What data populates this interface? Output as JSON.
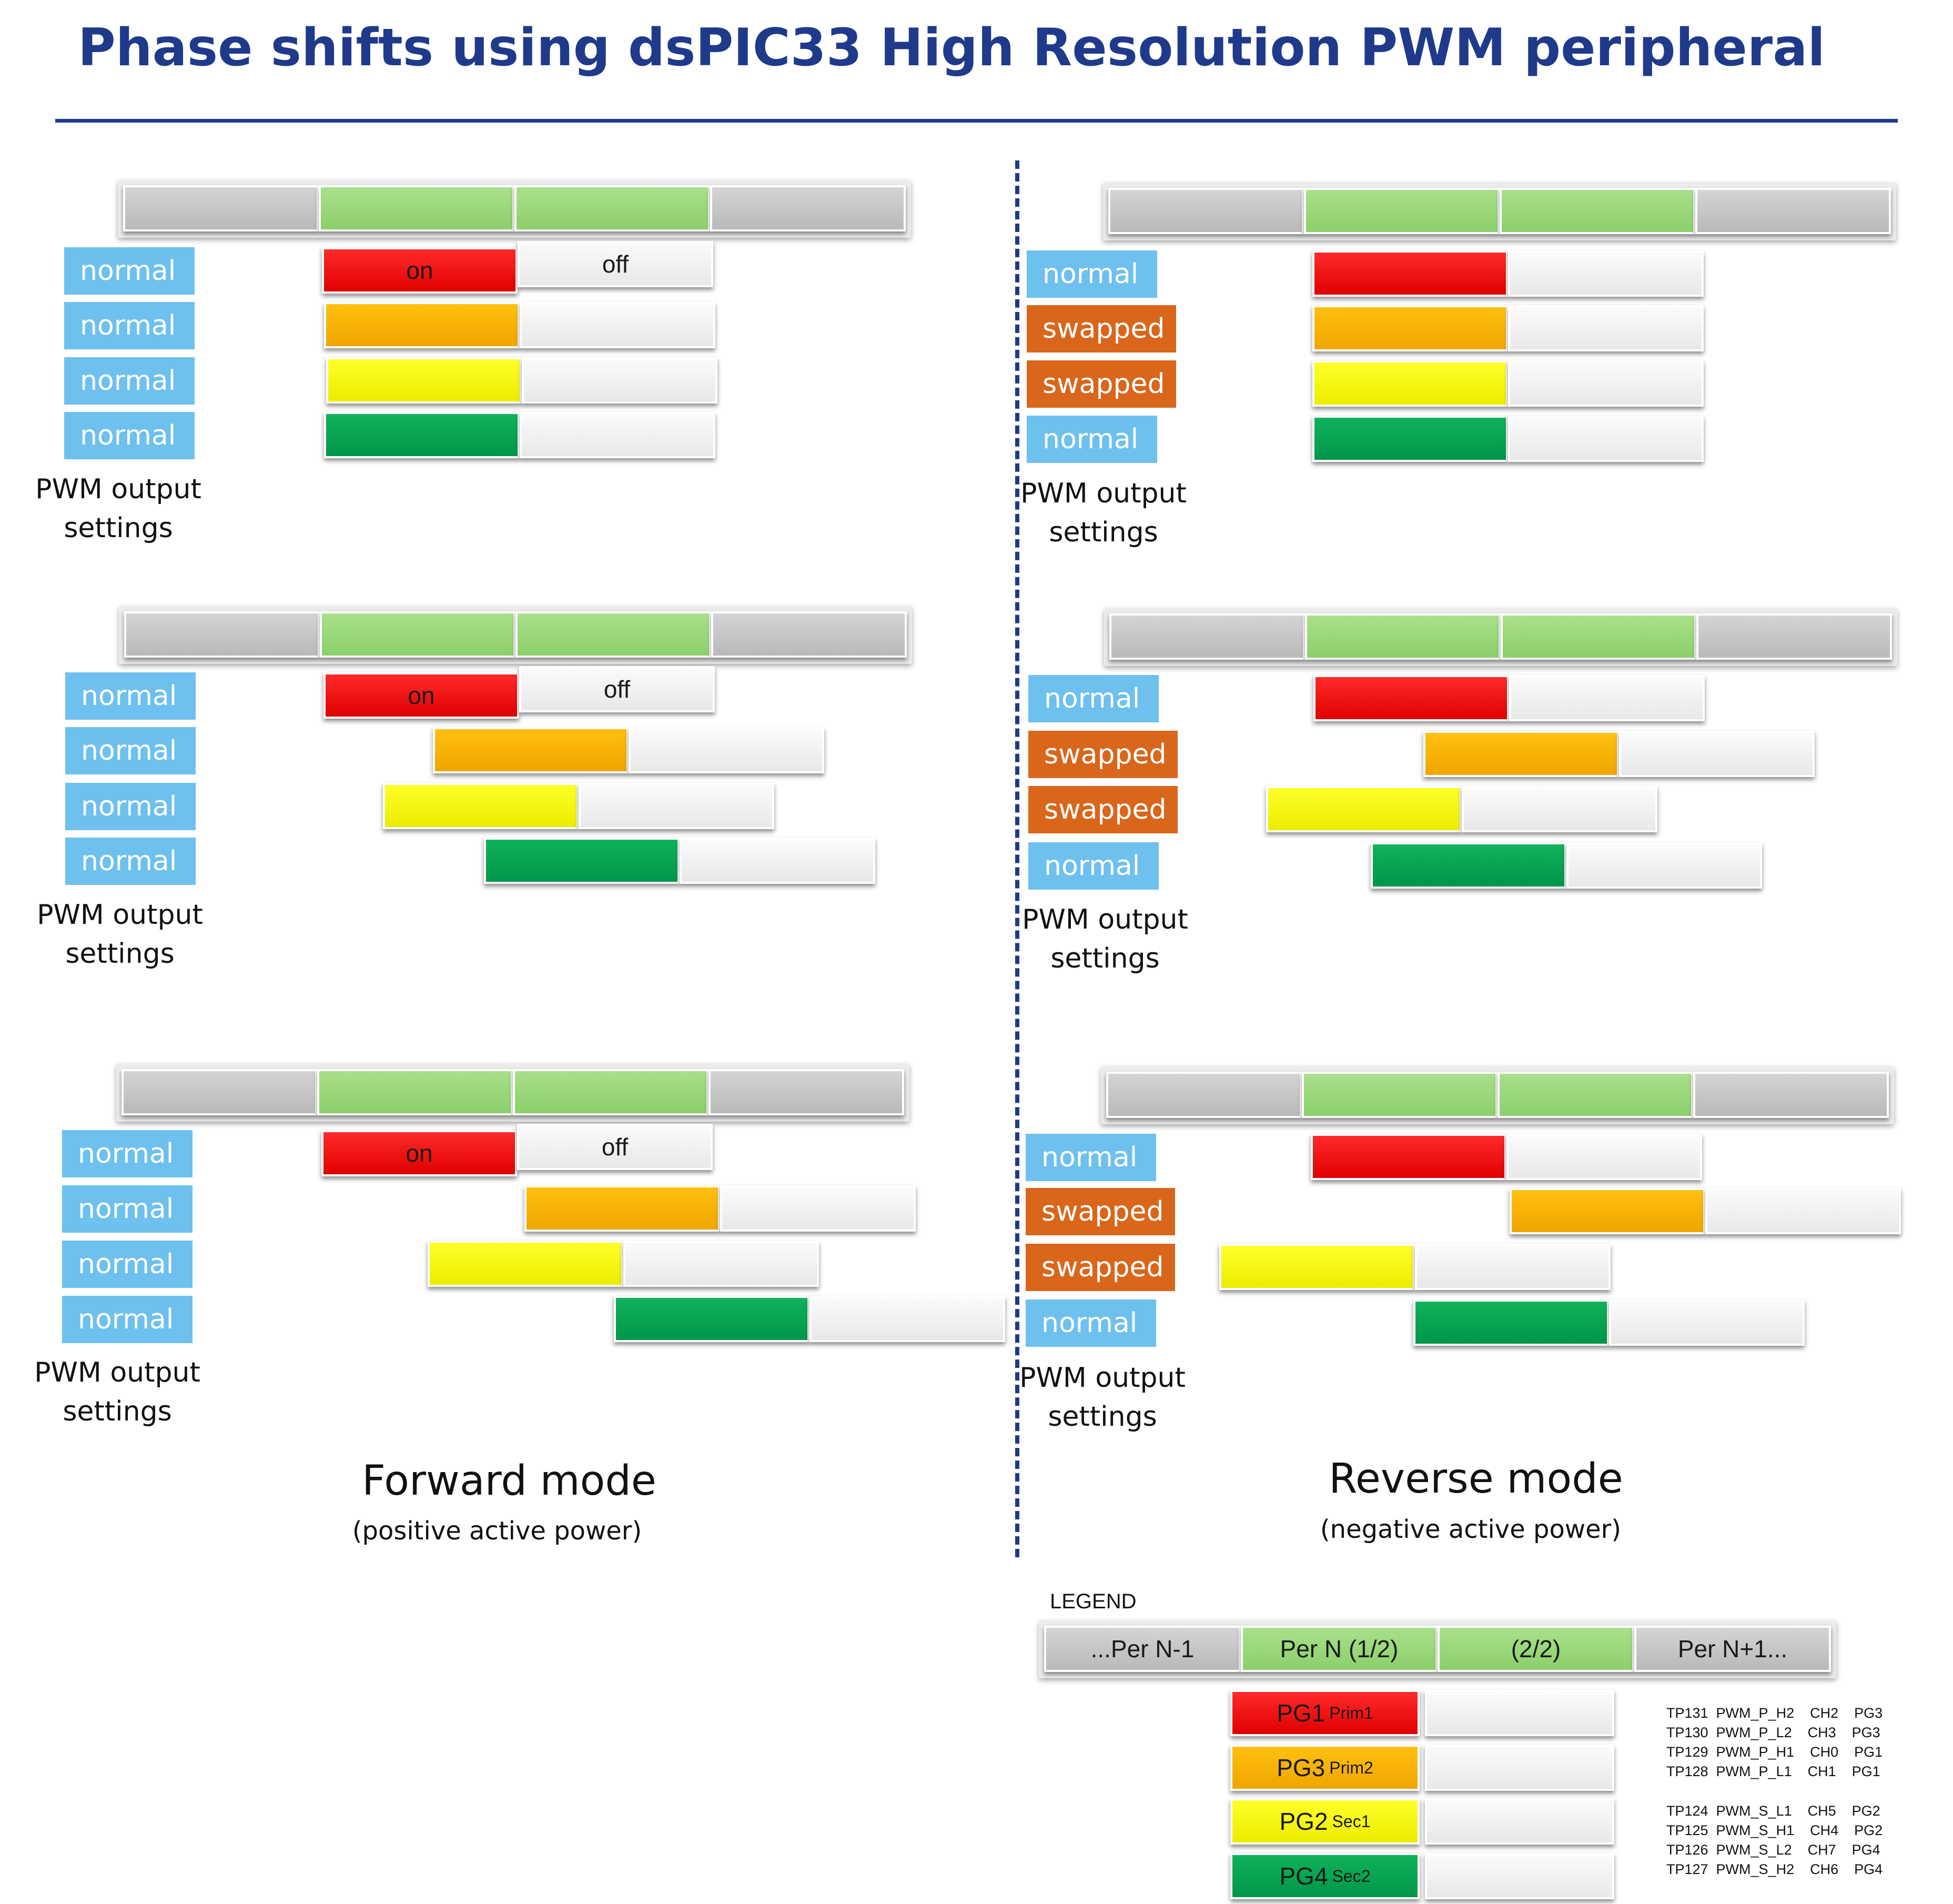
{
  "title": "Phase shifts using dsPIC33  High Resolution PWM peripheral",
  "colors": {
    "title": "#1f3a8a",
    "tag_normal": "#6ec0ee",
    "tag_swapped": "#d9661b",
    "period_gray": "#c4c4c4",
    "period_green": "#92d36e",
    "off_white": "#f2f2f2",
    "pg1_red": "#ff0000",
    "pg3_orange": "#f5b000",
    "pg2_yellow": "#ffff00",
    "pg4_green": "#00a050"
  },
  "on_label": "on",
  "off_label": "off",
  "caption_lines": [
    "PWM output",
    "settings"
  ],
  "modes": [
    {
      "name": "Forward mode",
      "subtitle": "(positive active power)"
    },
    {
      "name": "Reverse mode",
      "subtitle": "(negative active power)"
    }
  ],
  "panels": [
    {
      "id": "forward-aligned",
      "mode": "Forward mode",
      "outputs": [
        "normal",
        "normal",
        "normal",
        "normal"
      ],
      "shows_on_off_labels": true
    },
    {
      "id": "reverse-aligned",
      "mode": "Reverse mode",
      "outputs": [
        "normal",
        "swapped",
        "swapped",
        "normal"
      ],
      "shows_on_off_labels": false
    },
    {
      "id": "forward-shift-1",
      "mode": "Forward mode",
      "outputs": [
        "normal",
        "normal",
        "normal",
        "normal"
      ],
      "shows_on_off_labels": true
    },
    {
      "id": "reverse-shift-1",
      "mode": "Reverse mode",
      "outputs": [
        "normal",
        "swapped",
        "swapped",
        "normal"
      ],
      "shows_on_off_labels": false
    },
    {
      "id": "forward-shift-2",
      "mode": "Forward mode",
      "outputs": [
        "normal",
        "normal",
        "normal",
        "normal"
      ],
      "shows_on_off_labels": true
    },
    {
      "id": "reverse-shift-2",
      "mode": "Reverse mode",
      "outputs": [
        "normal",
        "swapped",
        "swapped",
        "normal"
      ],
      "shows_on_off_labels": false
    }
  ],
  "legend": {
    "title": "LEGEND",
    "periods": [
      "...Per N-1",
      "Per N (1/2)",
      "(2/2)",
      "Per N+1..."
    ],
    "generators": [
      {
        "name": "PG1",
        "role": "Prim1",
        "color": "red"
      },
      {
        "name": "PG3",
        "role": "Prim2",
        "color": "orange"
      },
      {
        "name": "PG2",
        "role": "Sec1",
        "color": "yellow"
      },
      {
        "name": "PG4",
        "role": "Sec2",
        "color": "green"
      }
    ],
    "pin_map_primary": [
      "TP131  PWM_P_H2    CH2    PG3",
      "TP130  PWM_P_L2    CH3    PG3",
      "TP129  PWM_P_H1    CH0    PG1",
      "TP128  PWM_P_L1    CH1    PG1"
    ],
    "pin_map_secondary": [
      "TP124  PWM_S_L1    CH5    PG2",
      "TP125  PWM_S_H1    CH4    PG2",
      "TP126  PWM_S_L2    CH7    PG4",
      "TP127  PWM_S_H2    CH6    PG4"
    ]
  }
}
